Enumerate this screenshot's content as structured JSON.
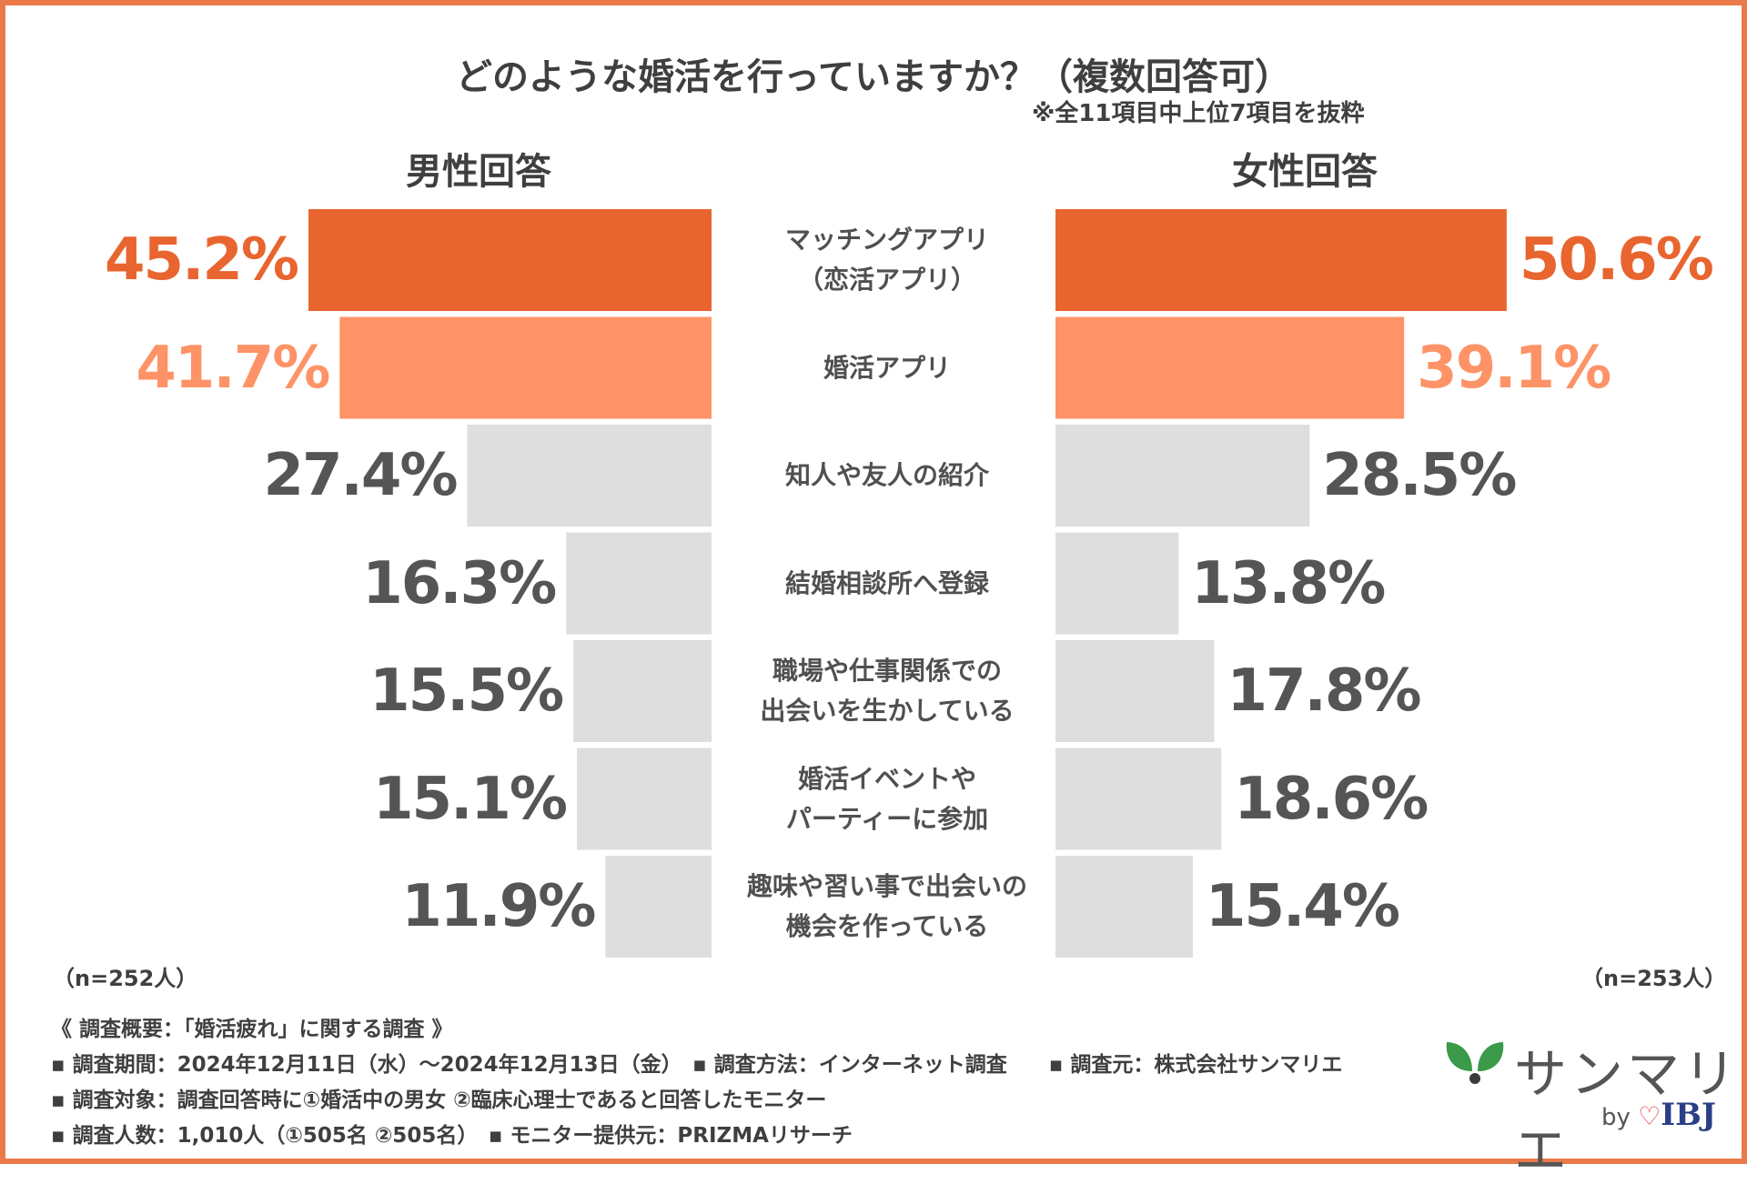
{
  "title": "どのような婚活を行っていますか？（複数回答可）",
  "note": "※全11項目中上位7項目を抜粋",
  "colors": {
    "top": "#e8652f",
    "second": "#fd9367",
    "rest": "#dedede",
    "text_gray": "#555555"
  },
  "chart_data": {
    "type": "bar",
    "orientation": "horizontal-butterfly",
    "title": "どのような婚活を行っていますか？（複数回答可）",
    "subtitle": "※全11項目中上位7項目を抜粋",
    "categories": [
      [
        "マッチングアプリ",
        "（恋活アプリ）"
      ],
      [
        "婚活アプリ"
      ],
      [
        "知人や友人の紹介"
      ],
      [
        "結婚相談所へ登録"
      ],
      [
        "職場や仕事関係での",
        "出会いを生かしている"
      ],
      [
        "婚活イベントや",
        "パーティーに参加"
      ],
      [
        "趣味や習い事で出会いの",
        "機会を作っている"
      ]
    ],
    "series": [
      {
        "name": "男性回答",
        "n": "（n=252人）",
        "values": [
          45.2,
          41.7,
          27.4,
          16.3,
          15.5,
          15.1,
          11.9
        ],
        "labels": [
          "45.2%",
          "41.7%",
          "27.4%",
          "16.3%",
          "15.5%",
          "15.1%",
          "11.9%"
        ]
      },
      {
        "name": "女性回答",
        "n": "（n=253人）",
        "values": [
          50.6,
          39.1,
          28.5,
          13.8,
          17.8,
          18.6,
          15.4
        ],
        "labels": [
          "50.6%",
          "39.1%",
          "28.5%",
          "13.8%",
          "17.8%",
          "18.6%",
          "15.4%"
        ]
      }
    ],
    "unit": "%",
    "grid": false
  },
  "survey": {
    "heading": "《 調査概要：「婚活疲れ」に関する調査 》",
    "line1": "▪ 調査期間：2024年12月11日（水）～2024年12月13日（金）　▪ 調査方法：インターネット調査　　▪ 調査元：株式会社サンマリエ",
    "line2": "▪ 調査対象：調査回答時に①婚活中の男女 ②臨床心理士であると回答したモニター",
    "line3": "▪ 調査人数：1,010人（①505名 ②505名）　▪ モニター提供元：PRIZMAリサーチ"
  },
  "brand": {
    "name": "サンマリエ",
    "by": "by",
    "partner": "IBJ",
    "icon": "leaf-logo-icon"
  }
}
